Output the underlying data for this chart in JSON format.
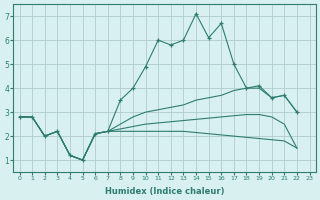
{
  "xlabel": "Humidex (Indice chaleur)",
  "xlim": [
    -0.5,
    23.5
  ],
  "ylim": [
    0.5,
    7.5
  ],
  "yticks": [
    1,
    2,
    3,
    4,
    5,
    6,
    7
  ],
  "xticks": [
    0,
    1,
    2,
    3,
    4,
    5,
    6,
    7,
    8,
    9,
    10,
    11,
    12,
    13,
    14,
    15,
    16,
    17,
    18,
    19,
    20,
    21,
    22,
    23
  ],
  "bg_color": "#d8f0f0",
  "grid_color": "#b0cccc",
  "line_color": "#2e7d6e",
  "lines": [
    {
      "x": [
        0,
        1,
        2,
        3,
        4,
        5,
        6,
        7,
        8,
        9,
        10,
        11,
        12,
        13,
        14,
        15,
        16,
        17,
        18,
        19,
        20,
        21,
        22
      ],
      "y": [
        2.8,
        2.8,
        2.0,
        2.2,
        1.2,
        1.0,
        2.1,
        2.2,
        3.5,
        4.0,
        4.9,
        6.0,
        5.8,
        6.0,
        7.1,
        6.1,
        6.7,
        5.0,
        4.0,
        4.1,
        3.6,
        3.7,
        3.0
      ],
      "marker": "+"
    },
    {
      "x": [
        0,
        1,
        2,
        3,
        4,
        5,
        6,
        7,
        8,
        9,
        10,
        11,
        12,
        13,
        14,
        15,
        16,
        17,
        18,
        19,
        20,
        21,
        22
      ],
      "y": [
        2.8,
        2.8,
        2.0,
        2.2,
        1.2,
        1.0,
        2.1,
        2.2,
        2.5,
        2.8,
        3.0,
        3.1,
        3.2,
        3.3,
        3.5,
        3.6,
        3.7,
        3.9,
        4.0,
        4.0,
        3.6,
        3.7,
        3.0
      ],
      "marker": null
    },
    {
      "x": [
        0,
        1,
        2,
        3,
        4,
        5,
        6,
        7,
        8,
        9,
        10,
        11,
        12,
        13,
        14,
        15,
        16,
        17,
        18,
        19,
        20,
        21,
        22
      ],
      "y": [
        2.8,
        2.8,
        2.0,
        2.2,
        1.2,
        1.0,
        2.1,
        2.2,
        2.3,
        2.4,
        2.5,
        2.55,
        2.6,
        2.65,
        2.7,
        2.75,
        2.8,
        2.85,
        2.9,
        2.9,
        2.8,
        2.5,
        1.5
      ],
      "marker": null
    },
    {
      "x": [
        0,
        1,
        2,
        3,
        4,
        5,
        6,
        7,
        8,
        9,
        10,
        11,
        12,
        13,
        14,
        15,
        16,
        17,
        18,
        19,
        20,
        21,
        22
      ],
      "y": [
        2.8,
        2.8,
        2.0,
        2.2,
        1.2,
        1.0,
        2.1,
        2.2,
        2.2,
        2.2,
        2.2,
        2.2,
        2.2,
        2.2,
        2.15,
        2.1,
        2.05,
        2.0,
        1.95,
        1.9,
        1.85,
        1.8,
        1.5
      ],
      "marker": null
    }
  ]
}
